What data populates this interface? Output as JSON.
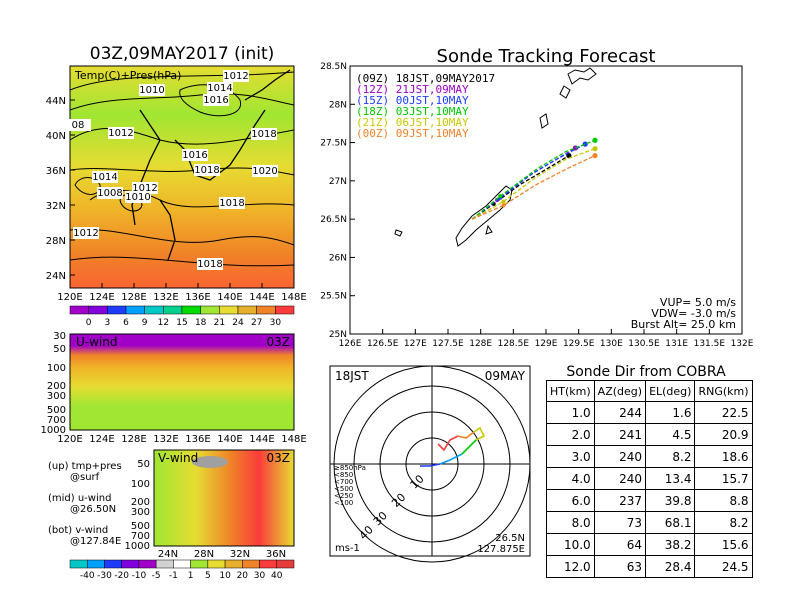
{
  "left": {
    "title": "03Z,09MAY2017 (init)",
    "map_label": "Temp(C)+Pres(hPa)",
    "pressure_labels": [
      "1012",
      "1010",
      "1014",
      "1016",
      "1012",
      "1018",
      "08",
      "1016",
      "1018",
      "1020",
      "1014",
      "1012",
      "1008",
      "1010",
      "1018",
      "1012",
      "1018"
    ],
    "lat_ticks": [
      "44N",
      "40N",
      "36N",
      "32N",
      "28N",
      "24N"
    ],
    "lon_ticks": [
      "120E",
      "124E",
      "128E",
      "132E",
      "136E",
      "140E",
      "144E",
      "148E"
    ],
    "temp_colorbar": {
      "labels": [
        "0",
        "3",
        "6",
        "9",
        "12",
        "15",
        "18",
        "21",
        "24",
        "27",
        "30"
      ],
      "colors": [
        "#a000c8",
        "#8200dc",
        "#1e3cff",
        "#00a0ff",
        "#00c8c8",
        "#00d28c",
        "#00dc00",
        "#a0e632",
        "#e6dc32",
        "#e6af2d",
        "#f08228",
        "#fa3c3c"
      ]
    },
    "u_panel": {
      "label": "U-wind",
      "time": "03Z",
      "p_ticks": [
        "30",
        "50",
        "100",
        "200",
        "300",
        "500",
        "700",
        "1000"
      ]
    },
    "v_panel": {
      "label": "V-wind",
      "time": "03Z",
      "p_ticks": [
        "50",
        "100",
        "200",
        "300",
        "500",
        "700",
        "1000"
      ],
      "lat_ticks": [
        "24N",
        "28N",
        "32N",
        "36N"
      ]
    },
    "legend_notes": [
      "(up) tmp+pres",
      "@surf",
      "(mid) u-wind",
      "@26.50N",
      "(bot) v-wind",
      "@127.84E"
    ],
    "wind_colorbar": {
      "labels": [
        "-40",
        "-30",
        "-20",
        "-10",
        "-5",
        "-1",
        "1",
        "5",
        "10",
        "20",
        "30",
        "40"
      ],
      "colors": [
        "#00c8c8",
        "#00a0ff",
        "#1e3cff",
        "#8200dc",
        "#a000c8",
        "#d2d2d2",
        "#ffffff",
        "#a0e632",
        "#e6dc32",
        "#e6af2d",
        "#f08228",
        "#fa3c3c",
        "#e63c3c"
      ]
    }
  },
  "track": {
    "title": "Sonde Tracking Forecast",
    "legend": [
      {
        "label": "(09Z)  18JST,09MAY2017",
        "color": "#000000"
      },
      {
        "label": "(12Z)  21JST,09MAY",
        "color": "#a000c8"
      },
      {
        "label": "(15Z)  00JST,10MAY",
        "color": "#1e3cff"
      },
      {
        "label": "(18Z)  03JST,10MAY",
        "color": "#00c800"
      },
      {
        "label": "(21Z)  06JST,10MAY",
        "color": "#c8c800"
      },
      {
        "label": "(00Z)  09JST,10MAY",
        "color": "#f08228"
      }
    ],
    "params": [
      "VUP=  5.0 m/s",
      "VDW= -3.0 m/s",
      "Burst Alt=  25.0 km"
    ]
  },
  "chart_data": {
    "type": "line",
    "title": "Sonde Tracking Forecast",
    "xlabel": "",
    "ylabel": "",
    "xlim": [
      126,
      132
    ],
    "ylim": [
      25,
      28.5
    ],
    "x_ticks": [
      "126E",
      "126.5E",
      "127E",
      "127.5E",
      "128E",
      "128.5E",
      "129E",
      "129.5E",
      "130E",
      "130.5E",
      "131E",
      "131.5E",
      "132E"
    ],
    "y_ticks": [
      "25N",
      "25.5N",
      "26N",
      "26.5N",
      "27N",
      "27.5N",
      "28N",
      "28.5N"
    ],
    "series": [
      {
        "name": "(09Z)  18JST,09MAY2017",
        "x": [
          127.87,
          128.2,
          128.6,
          129.0,
          129.35
        ],
        "y": [
          26.5,
          26.7,
          26.95,
          27.15,
          27.33
        ]
      },
      {
        "name": "(12Z)  21JST,09MAY",
        "x": [
          127.87,
          128.25,
          128.7,
          129.1,
          129.45
        ],
        "y": [
          26.5,
          26.75,
          27.05,
          27.25,
          27.43
        ]
      },
      {
        "name": "(15Z)  00JST,10MAY",
        "x": [
          127.87,
          128.3,
          128.8,
          129.2,
          129.6
        ],
        "y": [
          26.5,
          26.78,
          27.1,
          27.3,
          27.48
        ]
      },
      {
        "name": "(18Z)  03JST,10MAY",
        "x": [
          127.87,
          128.3,
          128.85,
          129.3,
          129.75
        ],
        "y": [
          26.5,
          26.8,
          27.15,
          27.38,
          27.53
        ]
      },
      {
        "name": "(21Z)  06JST,10MAY",
        "x": [
          127.87,
          128.35,
          128.85,
          129.3,
          129.75
        ],
        "y": [
          26.5,
          26.73,
          27.05,
          27.28,
          27.42
        ]
      },
      {
        "name": "(00Z)  09JST,10MAY",
        "x": [
          127.87,
          128.35,
          128.85,
          129.3,
          129.75
        ],
        "y": [
          26.5,
          26.68,
          26.95,
          27.15,
          27.33
        ]
      }
    ]
  },
  "polar": {
    "time": "18JST",
    "date": "09MAY",
    "ring_labels": [
      "10",
      "20",
      "30",
      "40"
    ],
    "unit": "ms-1",
    "location_lat": "26.5N",
    "location_lon": "127.875E",
    "levels": [
      {
        "label": "≥850hPa",
        "color": "#fa3c3c"
      },
      {
        "label": "<850",
        "color": "#f08228"
      },
      {
        "label": "<700",
        "color": "#c8c800"
      },
      {
        "label": "<500",
        "color": "#00c800"
      },
      {
        "label": "<250",
        "color": "#00a0ff"
      },
      {
        "label": "<100",
        "color": "#1e3cff"
      }
    ]
  },
  "cobra": {
    "title": "Sonde Dir from COBRA",
    "headers": [
      "HT(km)",
      "AZ(deg)",
      "EL(deg)",
      "RNG(km)"
    ],
    "rows": [
      [
        "1.0",
        "244",
        "1.6",
        "22.5"
      ],
      [
        "2.0",
        "241",
        "4.5",
        "20.9"
      ],
      [
        "3.0",
        "240",
        "8.2",
        "18.6"
      ],
      [
        "4.0",
        "240",
        "13.4",
        "15.7"
      ],
      [
        "6.0",
        "237",
        "39.8",
        "8.8"
      ],
      [
        "8.0",
        "73",
        "68.1",
        "8.2"
      ],
      [
        "10.0",
        "64",
        "38.2",
        "15.6"
      ],
      [
        "12.0",
        "63",
        "28.4",
        "24.5"
      ]
    ]
  }
}
